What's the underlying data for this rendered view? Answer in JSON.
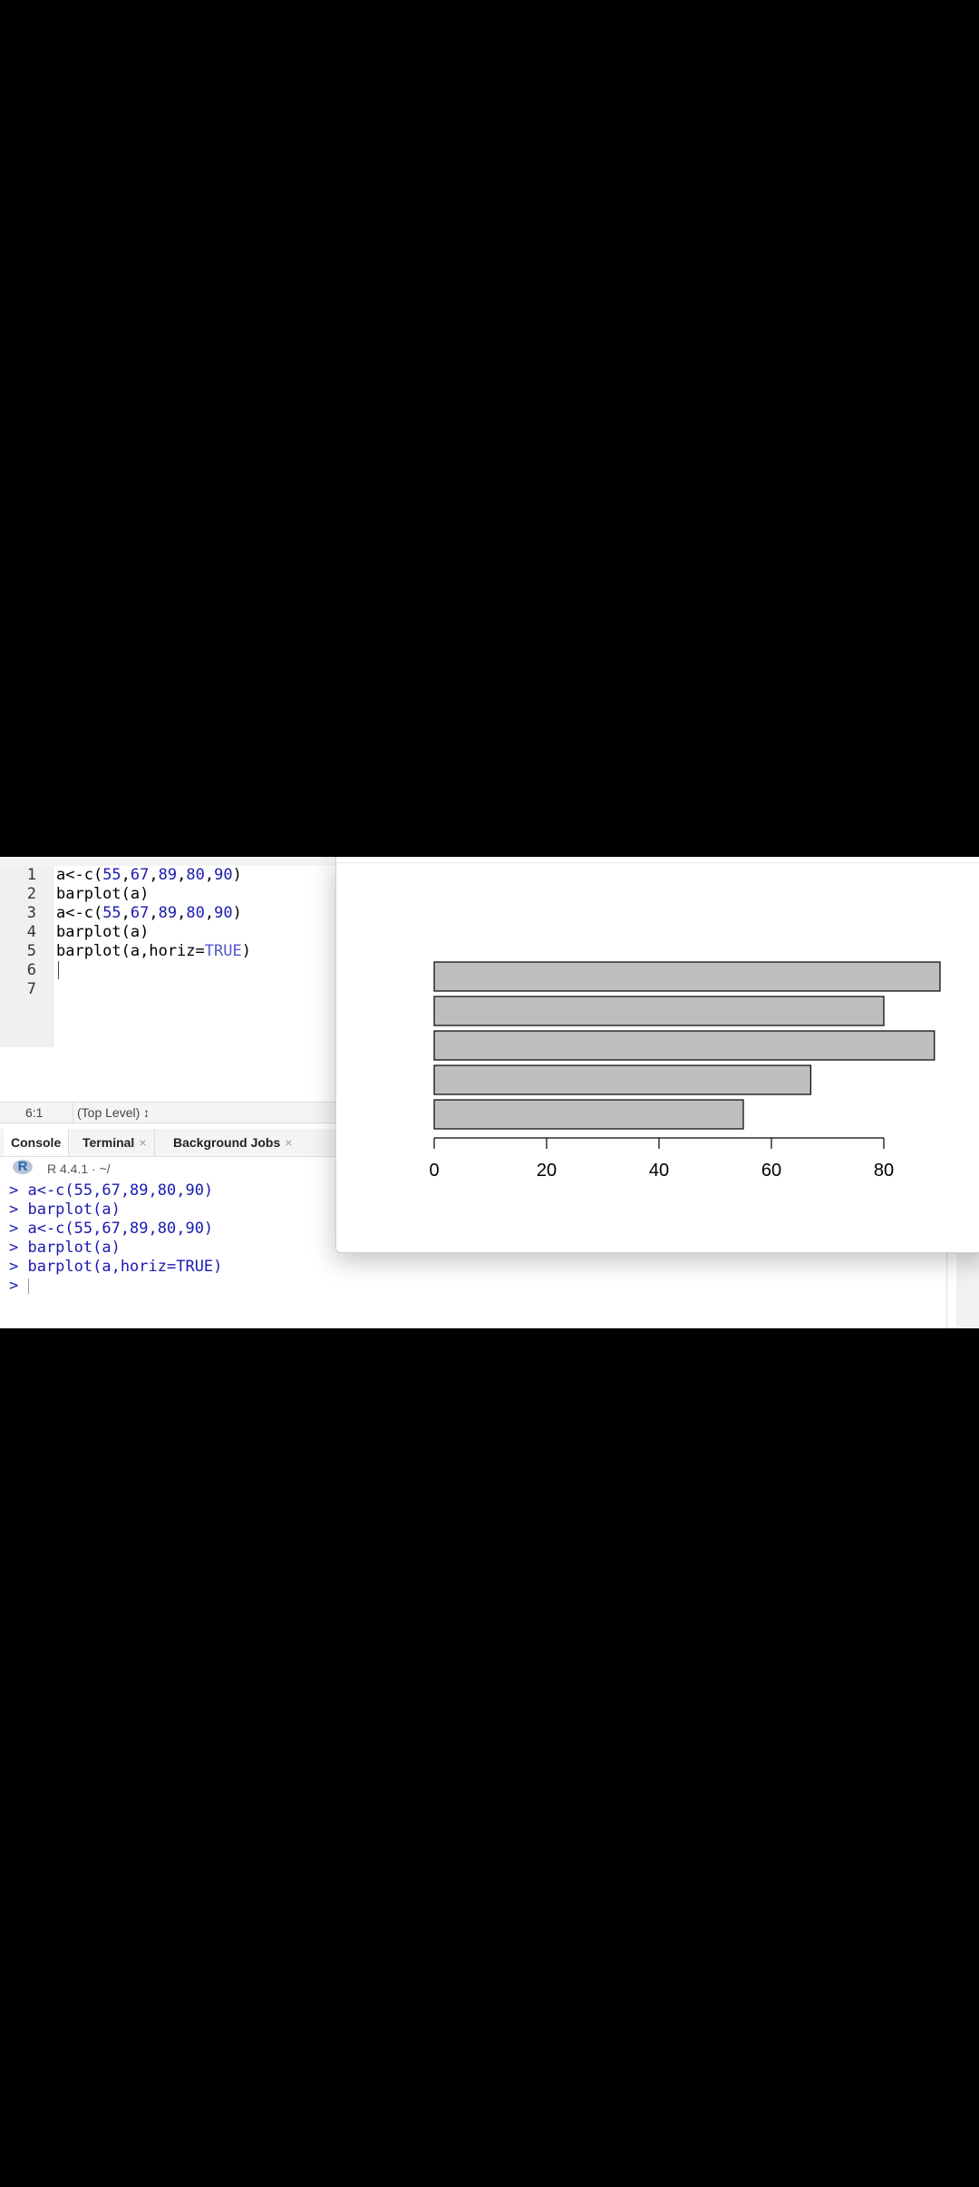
{
  "editor": {
    "lines": [
      {
        "n": "1",
        "text": "a<-c(55,67,89,80,90)"
      },
      {
        "n": "2",
        "text": "barplot(a)"
      },
      {
        "n": "3",
        "text": "a<-c(55,67,89,80,90)"
      },
      {
        "n": "4",
        "text": "barplot(a)"
      },
      {
        "n": "5",
        "text": "barplot(a,horiz=TRUE)"
      },
      {
        "n": "6",
        "text": ""
      },
      {
        "n": "7",
        "text": ""
      }
    ],
    "cursor_position": "6:1",
    "scope": "(Top Level) ↕"
  },
  "console": {
    "tabs": [
      {
        "label": "Console",
        "closable": false
      },
      {
        "label": "Terminal",
        "closable": true
      },
      {
        "label": "Background Jobs",
        "closable": true
      }
    ],
    "r_version": "R 4.4.1 · ~/",
    "lines": [
      "> a<-c(55,67,89,80,90)",
      "> barplot(a)",
      "> a<-c(55,67,89,80,90)",
      "> barplot(a)",
      "> barplot(a,horiz=TRUE)",
      ">"
    ],
    "close_symbol": "×",
    "logo_letter": "R"
  },
  "chart_data": {
    "type": "bar",
    "orientation": "horizontal",
    "values": [
      55,
      67,
      89,
      80,
      90
    ],
    "xlim": [
      0,
      90
    ],
    "x_ticks": [
      "0",
      "20",
      "40",
      "60",
      "80"
    ],
    "bar_color": "#bebebe",
    "bar_border": "#000000",
    "grid": false
  },
  "colors": {
    "code_number": "#1a1ab0",
    "code_keyword": "#5555cc",
    "console_text": "#1a1ab0"
  }
}
